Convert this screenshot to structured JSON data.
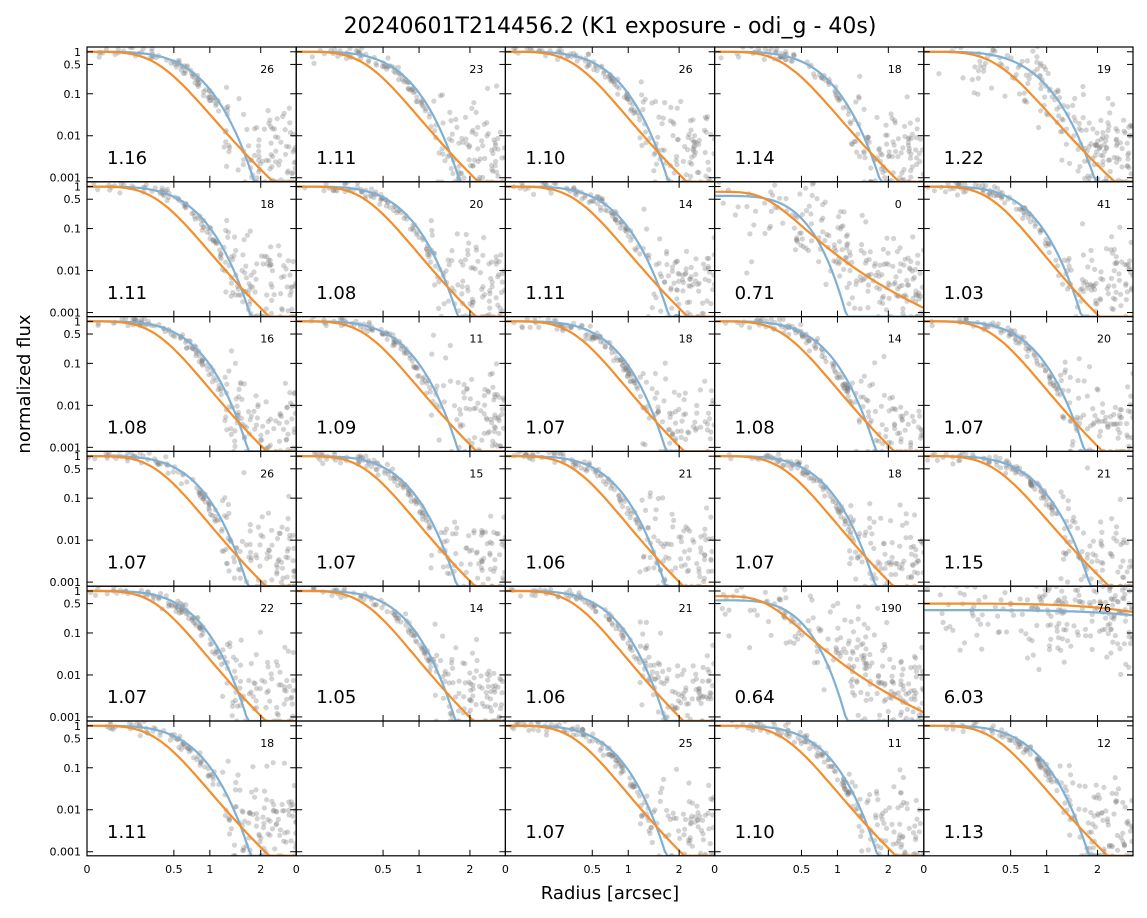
{
  "figure": {
    "title": "20240601T214456.2 (K1 exposure - odi_g - 40s)",
    "xlabel": "Radius [arcsec]",
    "ylabel": "normalized flux"
  },
  "colors": {
    "points": "#808080",
    "model_gaussian": "#7fb0d4",
    "model_moffat": "#f28e2b",
    "frame": "#000000"
  },
  "chart_data": {
    "type": "scatter",
    "layout": {
      "rows": 6,
      "cols": 5
    },
    "x_scale": "sqrt",
    "y_scale": "log",
    "xlim": [
      0,
      2.9
    ],
    "ylim": [
      0.0008,
      1.3
    ],
    "x_ticks": [
      0,
      0.5,
      1,
      2
    ],
    "x_tick_labels": [
      "0",
      "0.5",
      "1",
      "2"
    ],
    "y_ticks": [
      1,
      0.5,
      0.1,
      0.01,
      0.001
    ],
    "y_tick_labels": [
      "1",
      "0.5",
      "0.1",
      "0.01",
      "0.001"
    ],
    "panels": [
      {
        "row": 0,
        "col": 0,
        "fwhm": "1.16",
        "count": "26"
      },
      {
        "row": 0,
        "col": 1,
        "fwhm": "1.11",
        "count": "23"
      },
      {
        "row": 0,
        "col": 2,
        "fwhm": "1.10",
        "count": "26"
      },
      {
        "row": 0,
        "col": 3,
        "fwhm": "1.14",
        "count": "18"
      },
      {
        "row": 0,
        "col": 4,
        "fwhm": "1.22",
        "count": "19"
      },
      {
        "row": 1,
        "col": 0,
        "fwhm": "1.11",
        "count": "18"
      },
      {
        "row": 1,
        "col": 1,
        "fwhm": "1.08",
        "count": "20"
      },
      {
        "row": 1,
        "col": 2,
        "fwhm": "1.11",
        "count": "14"
      },
      {
        "row": 1,
        "col": 3,
        "fwhm": "0.71",
        "count": "0"
      },
      {
        "row": 1,
        "col": 4,
        "fwhm": "1.03",
        "count": "41"
      },
      {
        "row": 2,
        "col": 0,
        "fwhm": "1.08",
        "count": "16"
      },
      {
        "row": 2,
        "col": 1,
        "fwhm": "1.09",
        "count": "11"
      },
      {
        "row": 2,
        "col": 2,
        "fwhm": "1.07",
        "count": "18"
      },
      {
        "row": 2,
        "col": 3,
        "fwhm": "1.08",
        "count": "14"
      },
      {
        "row": 2,
        "col": 4,
        "fwhm": "1.07",
        "count": "20"
      },
      {
        "row": 3,
        "col": 0,
        "fwhm": "1.07",
        "count": "26"
      },
      {
        "row": 3,
        "col": 1,
        "fwhm": "1.07",
        "count": "15"
      },
      {
        "row": 3,
        "col": 2,
        "fwhm": "1.06",
        "count": "21"
      },
      {
        "row": 3,
        "col": 3,
        "fwhm": "1.07",
        "count": "18"
      },
      {
        "row": 3,
        "col": 4,
        "fwhm": "1.15",
        "count": "21"
      },
      {
        "row": 4,
        "col": 0,
        "fwhm": "1.07",
        "count": "22"
      },
      {
        "row": 4,
        "col": 1,
        "fwhm": "1.05",
        "count": "14"
      },
      {
        "row": 4,
        "col": 2,
        "fwhm": "1.06",
        "count": "21"
      },
      {
        "row": 4,
        "col": 3,
        "fwhm": "0.64",
        "count": "190"
      },
      {
        "row": 4,
        "col": 4,
        "fwhm": "6.03",
        "count": "76"
      },
      {
        "row": 5,
        "col": 0,
        "fwhm": "1.11",
        "count": "18"
      },
      {
        "row": 5,
        "col": 1,
        "fwhm": "",
        "count": "",
        "empty": true
      },
      {
        "row": 5,
        "col": 2,
        "fwhm": "1.07",
        "count": "25"
      },
      {
        "row": 5,
        "col": 3,
        "fwhm": "1.10",
        "count": "11"
      },
      {
        "row": 5,
        "col": 4,
        "fwhm": "1.13",
        "count": "12"
      }
    ]
  }
}
